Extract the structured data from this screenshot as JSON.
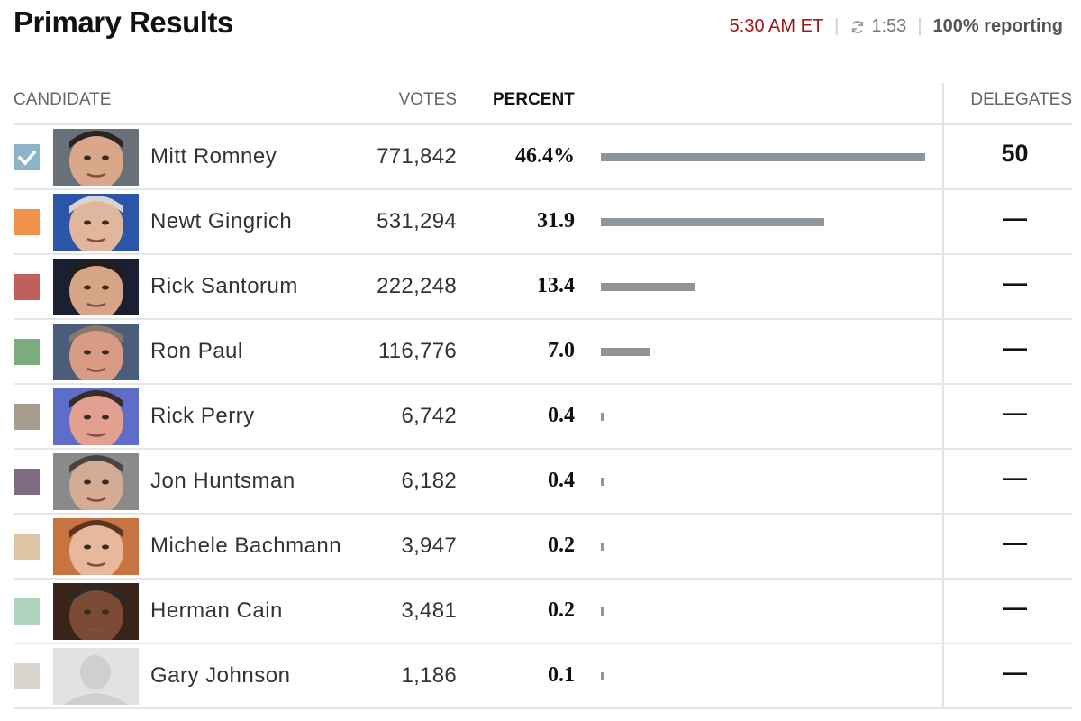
{
  "header": {
    "title": "Primary Results",
    "time": "5:30 AM ET",
    "refresh": "1:53",
    "reporting": "100% reporting"
  },
  "columns": {
    "candidate": "CANDIDATE",
    "votes": "VOTES",
    "percent": "PERCENT",
    "delegates": "DELEGATES"
  },
  "candidates": [
    {
      "name": "Mitt Romney",
      "votes": "771,842",
      "percent": "46.4%",
      "percent_value": 46.4,
      "delegates": "50",
      "color": "#8cb4c8",
      "winner": true,
      "photo_bg": "#6a7078",
      "skin": "#d9a88a",
      "hair": "#2a2420"
    },
    {
      "name": "Newt Gingrich",
      "votes": "531,294",
      "percent": "31.9",
      "percent_value": 31.9,
      "delegates": "—",
      "color": "#f0924a",
      "winner": false,
      "photo_bg": "#2b55a8",
      "skin": "#e0b69c",
      "hair": "#d8d4d0"
    },
    {
      "name": "Rick Santorum",
      "votes": "222,248",
      "percent": "13.4",
      "percent_value": 13.4,
      "delegates": "—",
      "color": "#c0605a",
      "winner": false,
      "photo_bg": "#1a2030",
      "skin": "#d8a488",
      "hair": "#241c18"
    },
    {
      "name": "Ron Paul",
      "votes": "116,776",
      "percent": "7.0",
      "percent_value": 7.0,
      "delegates": "—",
      "color": "#7aac7e",
      "winner": false,
      "photo_bg": "#4a5e7a",
      "skin": "#d89c84",
      "hair": "#8a7868"
    },
    {
      "name": "Rick Perry",
      "votes": "6,742",
      "percent": "0.4",
      "percent_value": 0.4,
      "delegates": "—",
      "color": "#a89c8c",
      "winner": false,
      "photo_bg": "#5e6ec8",
      "skin": "#e2a090",
      "hair": "#3a2c24"
    },
    {
      "name": "Jon Huntsman",
      "votes": "6,182",
      "percent": "0.4",
      "percent_value": 0.4,
      "delegates": "—",
      "color": "#806a82",
      "winner": false,
      "photo_bg": "#8a8a8a",
      "skin": "#d4ac94",
      "hair": "#4a4444"
    },
    {
      "name": "Michele Bachmann",
      "votes": "3,947",
      "percent": "0.2",
      "percent_value": 0.2,
      "delegates": "—",
      "color": "#dcc4a4",
      "winner": false,
      "photo_bg": "#c87440",
      "skin": "#e8b89c",
      "hair": "#5a3420"
    },
    {
      "name": "Herman Cain",
      "votes": "3,481",
      "percent": "0.2",
      "percent_value": 0.2,
      "delegates": "—",
      "color": "#b0d4bc",
      "winner": false,
      "photo_bg": "#3a2418",
      "skin": "#7a4a34",
      "hair": "#2a2a2a"
    },
    {
      "name": "Gary Johnson",
      "votes": "1,186",
      "percent": "0.1",
      "percent_value": 0.1,
      "delegates": "—",
      "color": "#d8d4cc",
      "winner": false,
      "photo_bg": "#e2e2e2",
      "skin": "#cfcfcf",
      "hair": "#cfcfcf",
      "placeholder": true
    }
  ]
}
